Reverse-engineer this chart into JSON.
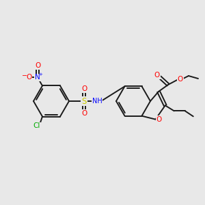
{
  "bg_color": "#e8e8e8",
  "bond_color": "#1a1a1a",
  "bond_lw": 1.4,
  "atom_colors": {
    "O": "#ff0000",
    "N": "#0000ff",
    "S": "#cccc00",
    "Cl": "#00aa00",
    "H": "#777777",
    "C": "#1a1a1a"
  },
  "font_size": 7.5
}
